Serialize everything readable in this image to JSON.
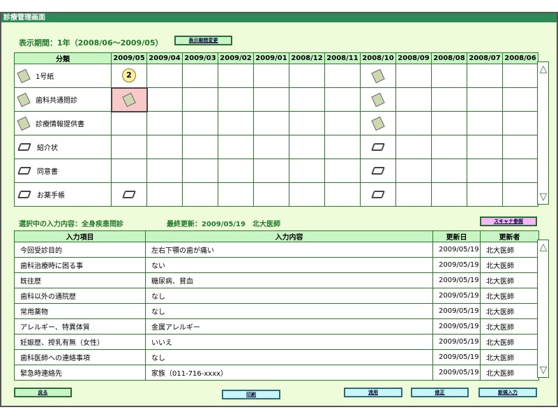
{
  "window": {
    "title": "診療管理画面"
  },
  "period": {
    "label": "表示期間：1年（2008/06〜2009/05）",
    "change_button": "表示期間変更"
  },
  "grid": {
    "header_category": "分類",
    "months": [
      "2009/05",
      "2009/04",
      "2009/03",
      "2009/02",
      "2009/01",
      "2008/12",
      "2008/11",
      "2008/10",
      "2008/09",
      "2008/08",
      "2008/07",
      "2008/06"
    ],
    "rows": [
      {
        "label": "1号紙",
        "icon": "document-card-icon",
        "cells": {
          "2009/05": {
            "type": "badge",
            "text": "2"
          },
          "2008/10": {
            "type": "doc"
          }
        }
      },
      {
        "label": "歯科共通問診",
        "icon": "document-card-icon",
        "cells": {
          "2009/05": {
            "type": "doc",
            "selected": true
          },
          "2008/10": {
            "type": "doc"
          }
        }
      },
      {
        "label": "診療情報提供書",
        "icon": "document-card-icon",
        "cells": {
          "2008/10": {
            "type": "doc"
          }
        }
      },
      {
        "label": "紹介状",
        "icon": "scanner-icon",
        "cells": {
          "2008/10": {
            "type": "scan"
          }
        }
      },
      {
        "label": "同意書",
        "icon": "scanner-icon",
        "cells": {
          "2008/10": {
            "type": "scan"
          }
        }
      },
      {
        "label": "お薬手帳",
        "icon": "scanner-icon",
        "cells": {
          "2009/05": {
            "type": "scan"
          },
          "2008/10": {
            "type": "scan"
          }
        }
      }
    ]
  },
  "selection": {
    "label": "選択中の入力内容：全身疾患問診",
    "last_update": "最終更新：2009/05/19　北大医師",
    "scan_button": "スキャナ参照"
  },
  "detail": {
    "headers": [
      "入力項目",
      "入力内容",
      "更新日",
      "更新者"
    ],
    "rows": [
      [
        "今回受診目的",
        "左右下顎の歯が痛い",
        "2009/05/19",
        "北大医師"
      ],
      [
        "歯科治療時に困る事",
        "ない",
        "2009/05/19",
        "北大医師"
      ],
      [
        "既往歴",
        "糖尿病、貧血",
        "2009/05/19",
        "北大医師"
      ],
      [
        "歯科以外の通院歴",
        "なし",
        "2009/05/19",
        "北大医師"
      ],
      [
        "常用薬物",
        "なし",
        "2009/05/19",
        "北大医師"
      ],
      [
        "アレルギー、特異体質",
        "金属アレルギー",
        "2009/05/19",
        "北大医師"
      ],
      [
        "妊娠歴、授乳有無（女性）",
        "いいえ",
        "2009/05/19",
        "北大医師"
      ],
      [
        "歯科医師への連絡事項",
        "なし",
        "2009/05/19",
        "北大医師"
      ],
      [
        "緊急時連絡先",
        "家族（011-716-xxxx）",
        "2009/05/19",
        "北大医師"
      ]
    ]
  },
  "footer": {
    "back": "戻る",
    "print": "印刷",
    "reuse": "流用",
    "edit": "修正",
    "new": "新規入力"
  },
  "colors": {
    "title_bar": "#2e8b57",
    "panel": "#eefcd9",
    "header": "#c7f5c4",
    "selected_cell": "#f9c9c9",
    "scan_button": "#f4b8f4",
    "action_button": "#c8f6f8"
  }
}
